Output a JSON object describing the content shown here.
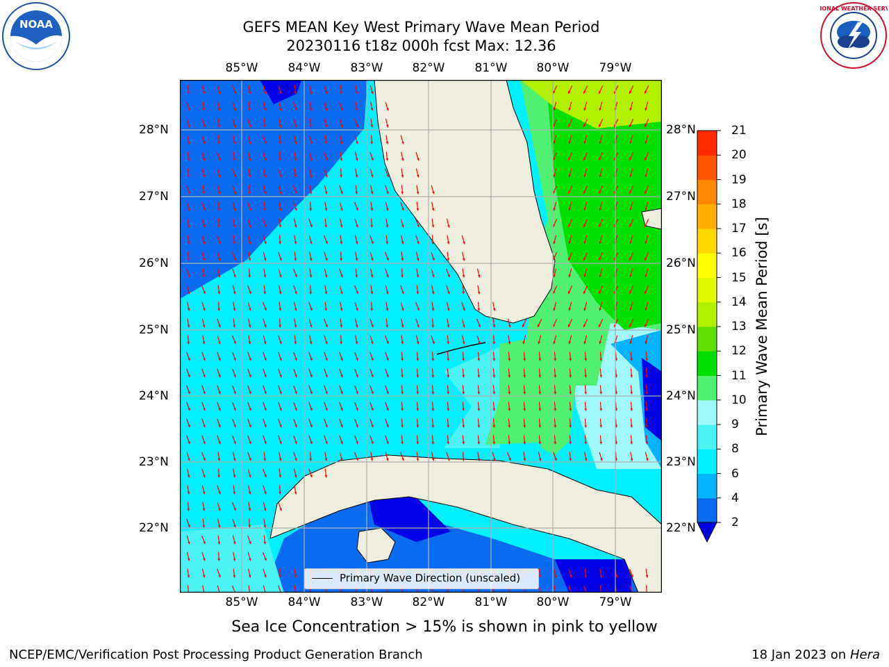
{
  "title": {
    "line1": "GEFS MEAN Key West Primary Wave Mean Period",
    "line2": "20230116 t18z 000h fcst   Max: 12.36"
  },
  "axes": {
    "lon_labels": [
      "85°W",
      "84°W",
      "83°W",
      "82°W",
      "81°W",
      "80°W",
      "79°W"
    ],
    "lat_labels": [
      "28°N",
      "27°N",
      "26°N",
      "25°N",
      "24°N",
      "23°N",
      "22°N"
    ],
    "lon_range": [
      -86.0,
      -78.25
    ],
    "lat_range": [
      21.05,
      28.75
    ]
  },
  "colorbar": {
    "label": "Primary Wave Mean Period [s]",
    "ticks": [
      "2",
      "4",
      "6",
      "8",
      "9",
      "10",
      "11",
      "12",
      "13",
      "14",
      "15",
      "16",
      "17",
      "18",
      "19",
      "20",
      "21"
    ],
    "colors": [
      "#0a6af0",
      "#00b4ff",
      "#00f0ff",
      "#4af2f2",
      "#a0f8f8",
      "#50f070",
      "#00e000",
      "#60e000",
      "#b0f000",
      "#e0f800",
      "#ffff00",
      "#ffd800",
      "#ffb000",
      "#ff8800",
      "#ff5500",
      "#ff2a00"
    ],
    "under_color": "#0000e6"
  },
  "legend": {
    "label": "Primary Wave Direction (unscaled)"
  },
  "note": "Sea Ice Concentration > 15% is shown in pink to yellow",
  "footer": {
    "left": "NCEP/EMC/Verification Post Processing Product Generation Branch",
    "right_date": "18 Jan 2023 on ",
    "right_host": "Hera"
  },
  "logos": {
    "left": "NOAA",
    "right": "NATIONAL WEATHER SERVICE"
  },
  "colors": {
    "land": "#eeedde",
    "arrows": "#ff0000",
    "grid": "#b0b0b0"
  }
}
